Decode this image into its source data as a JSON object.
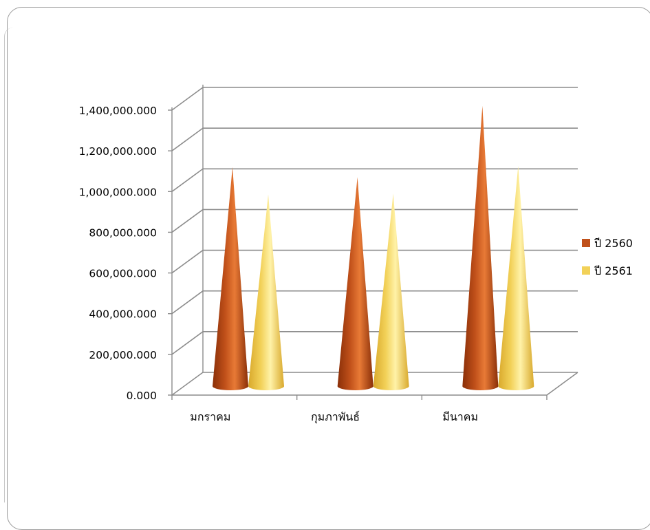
{
  "chart_data": {
    "type": "bar",
    "bar_shape": "cone",
    "categories": [
      "มกราคม",
      "กุมภาพันธ์",
      "มีนาคม"
    ],
    "series": [
      {
        "name": "ปี 2560",
        "values": [
          1080000000,
          1030000000,
          1380000000
        ],
        "color": "#c0501a"
      },
      {
        "name": "ปี 2561",
        "values": [
          945000000,
          950000000,
          1085000000
        ],
        "color": "#f2d158"
      }
    ],
    "ylim": [
      0,
      1400000000
    ],
    "yticks": [
      0,
      200000000,
      400000000,
      600000000,
      800000000,
      1000000000,
      1200000000,
      1400000000
    ],
    "ytick_labels": [
      "0.000",
      "200,000.000",
      "400,000.000",
      "600,000.000",
      "800,000.000",
      "1,000,000.000",
      "1,200,000.000",
      "1,400,000.000"
    ],
    "legend_position": "right",
    "grid": true
  },
  "colors": {
    "series_1_dark": "#8a2f08",
    "series_1_light": "#e87a36",
    "series_2_dark": "#d9a92c",
    "series_2_light": "#fff2a8",
    "gridline": "#8c8c8c"
  }
}
